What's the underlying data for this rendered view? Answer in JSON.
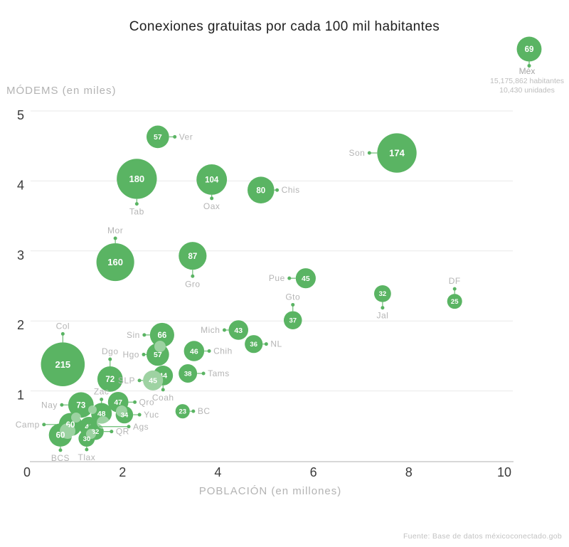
{
  "title": "Conexiones gratuitas por cada 100 mil habitantes",
  "axes": {
    "y_label": "MÓDEMS (en miles)",
    "x_label": "POBLACIÓN (en millones)",
    "y_ticks": [
      1,
      2,
      3,
      4,
      5
    ],
    "x_ticks": [
      0,
      2,
      4,
      6,
      8,
      10
    ]
  },
  "footer": "Fuente: Base de datos méxicoconectado.gob",
  "colors": {
    "bubble_green": "#5ab463",
    "light_bubble_green": "#9ed2a2",
    "label_gray": "#b5b5b5",
    "tick_text": "#3a3a3a",
    "gridline": "#e9e9e9",
    "axis_line": "#b0b0b0",
    "title_text": "#1f1f1f",
    "bubble_number": "#ffffff"
  },
  "chart_data": {
    "type": "bubble",
    "x_label": "POBLACIÓN (en millones)",
    "y_label": "MÓDEMS (en miles)",
    "x_range": [
      0,
      10
    ],
    "y_range": [
      0,
      5
    ],
    "x_ticks": [
      0,
      2,
      4,
      6,
      8,
      10
    ],
    "y_ticks": [
      1,
      2,
      3,
      4,
      5
    ],
    "grid": "horizontal-only",
    "value_meaning": "conexiones gratuitas por cada 100 mil habitantes",
    "points": [
      {
        "label": "Ver",
        "value": 57,
        "pop": 2.74,
        "mod": 4.63,
        "side": "right",
        "lead": 8
      },
      {
        "label": "Tab",
        "value": 180,
        "pop": 2.3,
        "mod": 4.03,
        "side": "below",
        "lead": 7
      },
      {
        "label": "Oax",
        "value": 104,
        "pop": 3.87,
        "mod": 4.02,
        "side": "below",
        "lead": 5
      },
      {
        "label": "Chis",
        "value": 80,
        "pop": 4.9,
        "mod": 3.87,
        "side": "right",
        "lead": 4
      },
      {
        "label": "Son",
        "value": 174,
        "pop": 7.75,
        "mod": 4.4,
        "side": "left",
        "lead": 11
      },
      {
        "label": "Mor",
        "value": 160,
        "pop": 1.85,
        "mod": 2.84,
        "side": "above",
        "lead": 7
      },
      {
        "label": "Gro",
        "value": 87,
        "pop": 3.47,
        "mod": 2.93,
        "side": "below",
        "lead": 9
      },
      {
        "label": "Pue",
        "value": 45,
        "pop": 5.84,
        "mod": 2.61,
        "side": "left",
        "lead": 9
      },
      {
        "label": "Gto",
        "value": 37,
        "pop": 5.57,
        "mod": 2.01,
        "side": "above",
        "lead": 9
      },
      {
        "label": "Jal",
        "value": 32,
        "pop": 7.45,
        "mod": 2.39,
        "side": "below",
        "lead": 8
      },
      {
        "label": "DF",
        "value": 25,
        "pop": 8.96,
        "mod": 2.28,
        "side": "above",
        "lead": 7
      },
      {
        "label": "Col",
        "value": 215,
        "pop": 0.75,
        "mod": 1.38,
        "side": "above",
        "lead": 12
      },
      {
        "label": "Sin",
        "value": 66,
        "pop": 2.83,
        "mod": 1.8,
        "side": "left",
        "lead": 8
      },
      {
        "label": "Hgo",
        "value": 57,
        "pop": 2.74,
        "mod": 1.52,
        "side": "left",
        "lead": 4
      },
      {
        "label": "Dgo",
        "value": 72,
        "pop": 1.74,
        "mod": 1.17,
        "side": "above",
        "lead": 10
      },
      {
        "label": "SLP",
        "value": 45,
        "pop": 2.64,
        "mod": 1.15,
        "side": "left",
        "lead": 5,
        "light": true
      },
      {
        "label": "Coah",
        "value": 44,
        "pop": 2.85,
        "mod": 1.22,
        "side": "below",
        "lead": 6
      },
      {
        "label": "Mich",
        "value": 43,
        "pop": 4.43,
        "mod": 1.87,
        "side": "left",
        "lead": 6
      },
      {
        "label": "NL",
        "value": 36,
        "pop": 4.75,
        "mod": 1.67,
        "side": "right",
        "lead": 5
      },
      {
        "label": "Chih",
        "value": 46,
        "pop": 3.5,
        "mod": 1.57,
        "side": "right",
        "lead": 7
      },
      {
        "label": "Tams",
        "value": 38,
        "pop": 3.37,
        "mod": 1.25,
        "side": "right",
        "lead": 9
      },
      {
        "label": "Nay",
        "value": 73,
        "pop": 1.13,
        "mod": 0.8,
        "side": "left",
        "lead": 9
      },
      {
        "label": "Zac",
        "value": 48,
        "pop": 1.56,
        "mod": 0.68,
        "side": "above",
        "lead": 5
      },
      {
        "label": "Qro",
        "value": 47,
        "pop": 1.91,
        "mod": 0.84,
        "side": "right",
        "lead": 9
      },
      {
        "label": "Yuc",
        "value": 34,
        "pop": 2.04,
        "mod": 0.66,
        "side": "right",
        "lead": 9
      },
      {
        "label": "Camp",
        "value": 60,
        "pop": 0.91,
        "mod": 0.52,
        "side": "left",
        "lead": 21
      },
      {
        "label": "BCS",
        "value": 60,
        "pop": 0.7,
        "mod": 0.37,
        "side": "below",
        "lead": 5
      },
      {
        "label": "Ags",
        "value": 43,
        "pop": 1.3,
        "mod": 0.49,
        "side": "right",
        "lead": 42
      },
      {
        "label": "QR",
        "value": 32,
        "pop": 1.43,
        "mod": 0.42,
        "side": "right",
        "lead": 11
      },
      {
        "label": "Tlax",
        "value": 30,
        "pop": 1.25,
        "mod": 0.32,
        "side": "below",
        "lead": 4
      },
      {
        "label": "BC",
        "value": 23,
        "pop": 3.26,
        "mod": 0.71,
        "side": "right",
        "lead": 5
      }
    ],
    "callout": {
      "label": "Méx",
      "value": 69,
      "line1": "15,175,862 habitantes",
      "line2": "10,430 unidades"
    }
  }
}
